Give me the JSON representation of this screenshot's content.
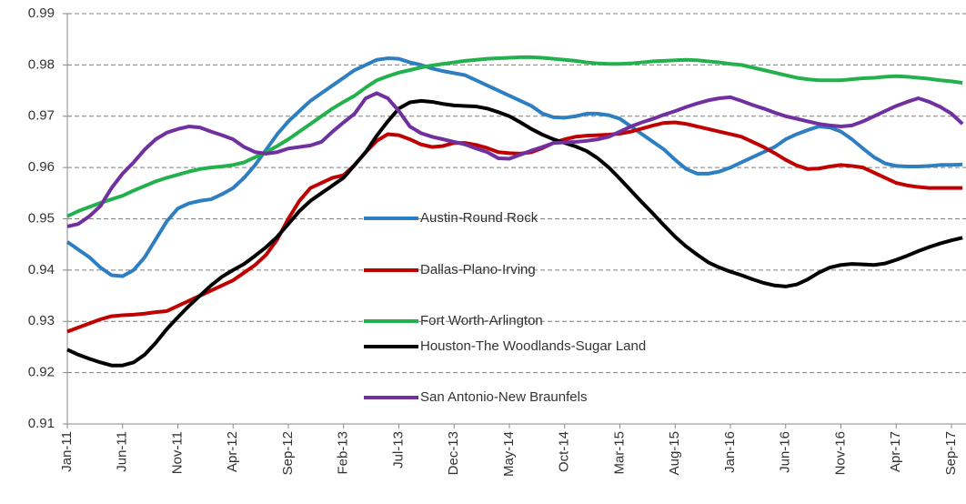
{
  "chart_data": {
    "type": "line",
    "categories": [
      "Jan-11",
      null,
      null,
      null,
      null,
      "Jun-11",
      null,
      null,
      null,
      null,
      "Nov-11",
      null,
      null,
      null,
      null,
      "Apr-12",
      null,
      null,
      null,
      null,
      "Sep-12",
      null,
      null,
      null,
      null,
      "Feb-13",
      null,
      null,
      null,
      null,
      "Jul-13",
      null,
      null,
      null,
      null,
      "Dec-13",
      null,
      null,
      null,
      null,
      "May-14",
      null,
      null,
      null,
      null,
      "Oct-14",
      null,
      null,
      null,
      null,
      "Mar-15",
      null,
      null,
      null,
      null,
      "Aug-15",
      null,
      null,
      null,
      null,
      "Jan-16",
      null,
      null,
      null,
      null,
      "Jun-16",
      null,
      null,
      null,
      null,
      "Nov-16",
      null,
      null,
      null,
      null,
      "Apr-17",
      null,
      null,
      null,
      null,
      "Sep-17",
      null
    ],
    "series": [
      {
        "name": "Austin-Round Rock",
        "color": "#2e7fc2",
        "values": [
          0.9455,
          0.944,
          0.9425,
          0.9405,
          0.939,
          0.9388,
          0.94,
          0.9425,
          0.946,
          0.9495,
          0.952,
          0.953,
          0.9535,
          0.9538,
          0.9548,
          0.956,
          0.958,
          0.9605,
          0.9635,
          0.9665,
          0.969,
          0.971,
          0.973,
          0.9745,
          0.976,
          0.9775,
          0.979,
          0.98,
          0.981,
          0.9813,
          0.9812,
          0.9805,
          0.98,
          0.9793,
          0.9788,
          0.9784,
          0.978,
          0.977,
          0.976,
          0.975,
          0.974,
          0.973,
          0.972,
          0.9705,
          0.9698,
          0.9697,
          0.97,
          0.9705,
          0.9705,
          0.9702,
          0.9695,
          0.968,
          0.9665,
          0.965,
          0.9635,
          0.9615,
          0.9597,
          0.9588,
          0.9588,
          0.9592,
          0.96,
          0.961,
          0.962,
          0.963,
          0.964,
          0.9655,
          0.9665,
          0.9673,
          0.968,
          0.9678,
          0.967,
          0.9655,
          0.9637,
          0.962,
          0.9608,
          0.9603,
          0.9602,
          0.9602,
          0.9603,
          0.9605,
          0.9605,
          0.9606
        ]
      },
      {
        "name": "Dallas-Plano-Irving",
        "color": "#c00000",
        "values": [
          0.928,
          0.9288,
          0.9296,
          0.9304,
          0.931,
          0.9312,
          0.9313,
          0.9315,
          0.9318,
          0.932,
          0.933,
          0.934,
          0.935,
          0.936,
          0.937,
          0.938,
          0.9395,
          0.941,
          0.943,
          0.946,
          0.95,
          0.9535,
          0.956,
          0.957,
          0.958,
          0.9585,
          0.9605,
          0.963,
          0.9652,
          0.9665,
          0.9663,
          0.9655,
          0.9645,
          0.964,
          0.9642,
          0.9648,
          0.9648,
          0.9644,
          0.9638,
          0.963,
          0.9628,
          0.9627,
          0.963,
          0.9638,
          0.9648,
          0.9655,
          0.966,
          0.9662,
          0.9663,
          0.9664,
          0.9666,
          0.967,
          0.9676,
          0.9682,
          0.9687,
          0.9688,
          0.9685,
          0.968,
          0.9675,
          0.967,
          0.9665,
          0.966,
          0.965,
          0.964,
          0.9628,
          0.9615,
          0.9604,
          0.9597,
          0.9598,
          0.9602,
          0.9605,
          0.9603,
          0.96,
          0.959,
          0.958,
          0.957,
          0.9565,
          0.9562,
          0.956,
          0.956,
          0.956,
          0.956
        ]
      },
      {
        "name": "Fort Worth-Arlington",
        "color": "#22b14c",
        "values": [
          0.9505,
          0.9515,
          0.9523,
          0.9531,
          0.9538,
          0.9545,
          0.9555,
          0.9564,
          0.9573,
          0.958,
          0.9586,
          0.9592,
          0.9597,
          0.96,
          0.9602,
          0.9605,
          0.961,
          0.962,
          0.963,
          0.9642,
          0.9655,
          0.967,
          0.9685,
          0.97,
          0.9715,
          0.9728,
          0.974,
          0.9756,
          0.977,
          0.9778,
          0.9785,
          0.979,
          0.9795,
          0.9799,
          0.9802,
          0.9805,
          0.9808,
          0.981,
          0.9812,
          0.9813,
          0.9814,
          0.9815,
          0.9815,
          0.9814,
          0.9812,
          0.981,
          0.9808,
          0.9805,
          0.9803,
          0.9802,
          0.9802,
          0.9803,
          0.9805,
          0.9807,
          0.9808,
          0.9809,
          0.981,
          0.9809,
          0.9807,
          0.9805,
          0.9802,
          0.98,
          0.9795,
          0.979,
          0.9785,
          0.978,
          0.9775,
          0.9772,
          0.977,
          0.977,
          0.977,
          0.9772,
          0.9774,
          0.9775,
          0.9777,
          0.9778,
          0.9777,
          0.9775,
          0.9773,
          0.977,
          0.9768,
          0.9765
        ]
      },
      {
        "name": "Houston-The Woodlands-Sugar Land",
        "color": "#000000",
        "values": [
          0.9245,
          0.9235,
          0.9227,
          0.922,
          0.9214,
          0.9214,
          0.922,
          0.9235,
          0.9258,
          0.9285,
          0.9308,
          0.933,
          0.935,
          0.937,
          0.9387,
          0.94,
          0.9412,
          0.9428,
          0.9445,
          0.9465,
          0.949,
          0.9515,
          0.9535,
          0.955,
          0.9565,
          0.958,
          0.9605,
          0.963,
          0.9662,
          0.969,
          0.9715,
          0.9727,
          0.973,
          0.9728,
          0.9724,
          0.9721,
          0.972,
          0.9719,
          0.9715,
          0.9708,
          0.97,
          0.9688,
          0.9675,
          0.9664,
          0.9655,
          0.9648,
          0.9641,
          0.9632,
          0.9618,
          0.96,
          0.9578,
          0.9555,
          0.9532,
          0.951,
          0.9487,
          0.9465,
          0.9446,
          0.943,
          0.9415,
          0.9405,
          0.9397,
          0.939,
          0.9382,
          0.9375,
          0.937,
          0.9368,
          0.9372,
          0.9382,
          0.9395,
          0.9405,
          0.941,
          0.9412,
          0.9411,
          0.941,
          0.9413,
          0.942,
          0.9428,
          0.9437,
          0.9445,
          0.9452,
          0.9458,
          0.9463
        ]
      },
      {
        "name": "San Antonio-New Braunfels",
        "color": "#7030a0",
        "values": [
          0.9485,
          0.949,
          0.9505,
          0.9525,
          0.956,
          0.9588,
          0.961,
          0.9635,
          0.9655,
          0.9668,
          0.9675,
          0.968,
          0.9678,
          0.967,
          0.9663,
          0.9655,
          0.964,
          0.963,
          0.9627,
          0.963,
          0.9637,
          0.964,
          0.9643,
          0.965,
          0.967,
          0.9688,
          0.9705,
          0.9735,
          0.9745,
          0.9735,
          0.971,
          0.968,
          0.9667,
          0.966,
          0.9655,
          0.965,
          0.9645,
          0.9637,
          0.963,
          0.9618,
          0.9617,
          0.9625,
          0.9633,
          0.964,
          0.9648,
          0.9649,
          0.965,
          0.9652,
          0.9655,
          0.966,
          0.967,
          0.968,
          0.9688,
          0.9695,
          0.9703,
          0.971,
          0.9718,
          0.9725,
          0.9731,
          0.9735,
          0.9737,
          0.973,
          0.9722,
          0.9715,
          0.9707,
          0.97,
          0.9695,
          0.969,
          0.9685,
          0.9682,
          0.968,
          0.9682,
          0.969,
          0.97,
          0.971,
          0.972,
          0.9728,
          0.9735,
          0.9728,
          0.9718,
          0.9705,
          0.9685
        ]
      }
    ],
    "ylim": [
      0.91,
      0.99
    ],
    "yticks": [
      0.91,
      0.92,
      0.93,
      0.94,
      0.95,
      0.96,
      0.97,
      0.98,
      0.99
    ],
    "grid": true
  }
}
